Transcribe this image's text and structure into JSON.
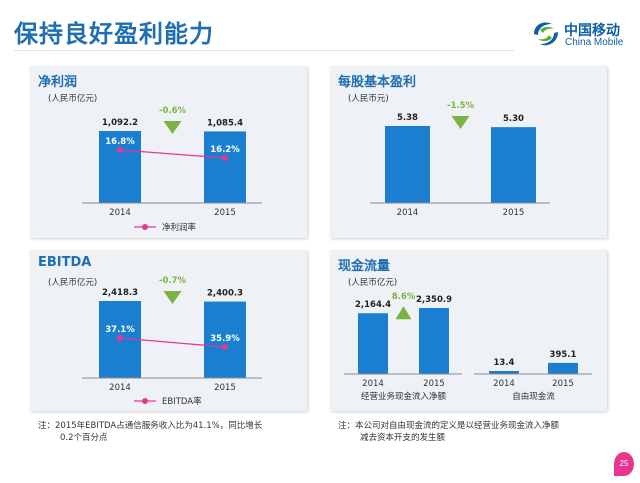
{
  "page": {
    "title": "保持良好盈利能力",
    "brand_cn": "中国移动",
    "brand_en": "China Mobile",
    "page_number": "25"
  },
  "colors": {
    "bar": "#1a7fd1",
    "accent": "#7cb342",
    "line": "#e8368f",
    "title": "#1f6fb2"
  },
  "chart_data": [
    {
      "type": "bar",
      "title": "净利润",
      "unit": "(人民币亿元)",
      "categories": [
        "2014",
        "2015"
      ],
      "values": [
        1092.2,
        1085.4
      ],
      "value_labels": [
        "1,092.2",
        "1,085.4"
      ],
      "change": "-0.6%",
      "ratio_series": {
        "name": "净利润率",
        "values": [
          16.8,
          16.2
        ],
        "labels": [
          "16.8%",
          "16.2%"
        ]
      }
    },
    {
      "type": "bar",
      "title": "每股基本盈利",
      "unit": "(人民币元)",
      "categories": [
        "2014",
        "2015"
      ],
      "values": [
        5.38,
        5.3
      ],
      "value_labels": [
        "5.38",
        "5.30"
      ],
      "change": "-1.5%"
    },
    {
      "type": "bar",
      "title": "EBITDA",
      "unit": "(人民币亿元)",
      "categories": [
        "2014",
        "2015"
      ],
      "values": [
        2418.3,
        2400.3
      ],
      "value_labels": [
        "2,418.3",
        "2,400.3"
      ],
      "change": "-0.7%",
      "ratio_series": {
        "name": "EBITDA率",
        "values": [
          37.1,
          35.9
        ],
        "labels": [
          "37.1%",
          "35.9%"
        ]
      }
    },
    {
      "type": "bar",
      "title": "现金流量",
      "unit": "(人民币亿元)",
      "groups": [
        {
          "name": "经营业务现金流入净额",
          "categories": [
            "2014",
            "2015"
          ],
          "values": [
            2164.4,
            2350.9
          ],
          "value_labels": [
            "2,164.4",
            "2,350.9"
          ],
          "change": "8.6%"
        },
        {
          "name": "自由现金流",
          "categories": [
            "2014",
            "2015"
          ],
          "values": [
            13.4,
            395.1
          ],
          "value_labels": [
            "13.4",
            "395.1"
          ]
        }
      ]
    }
  ],
  "notes": {
    "left": [
      "注：2015年EBITDA占通信服务收入比为41.1%，同比增长",
      "0.2个百分点"
    ],
    "right": [
      "注：本公司对自由现金流的定义是以经营业务现金流入净额",
      "减去资本开支的发生额"
    ]
  }
}
